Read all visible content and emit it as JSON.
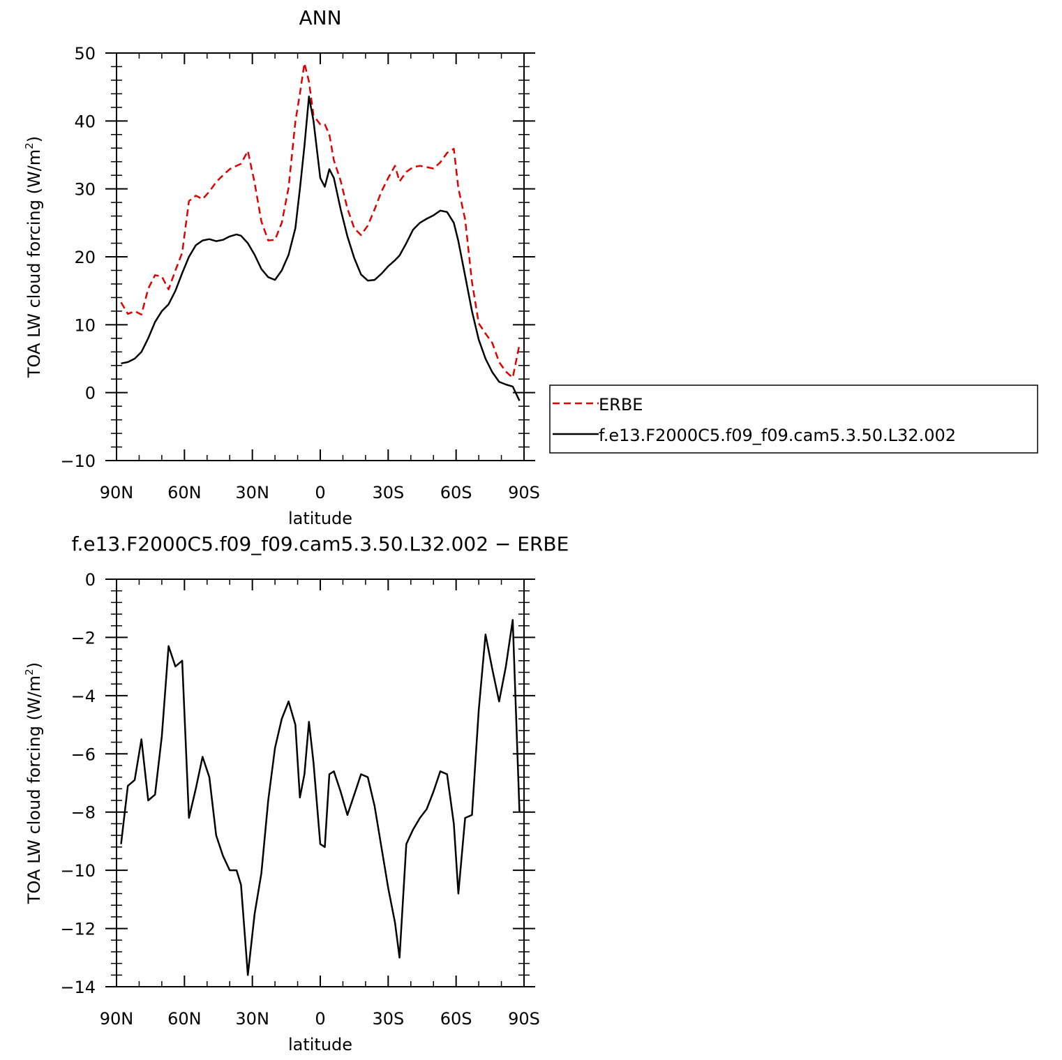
{
  "chart_data": [
    {
      "type": "line",
      "title": "ANN",
      "xlabel": "latitude",
      "ylabel_main": "TOA LW cloud forcing (W/m",
      "ylabel_sup": "2",
      "ylabel_close": ")",
      "xlim": [
        90,
        -90
      ],
      "ylim": [
        -10,
        50
      ],
      "x_ticks": [
        {
          "value": 90,
          "label": "90N"
        },
        {
          "value": 60,
          "label": "60N"
        },
        {
          "value": 30,
          "label": "30N"
        },
        {
          "value": 0,
          "label": "0"
        },
        {
          "value": -30,
          "label": "30S"
        },
        {
          "value": -60,
          "label": "60S"
        },
        {
          "value": -90,
          "label": "90S"
        }
      ],
      "y_ticks": [
        {
          "value": 50,
          "label": "50"
        },
        {
          "value": 40,
          "label": "40"
        },
        {
          "value": 30,
          "label": "30"
        },
        {
          "value": 20,
          "label": "20"
        },
        {
          "value": 10,
          "label": "10"
        },
        {
          "value": 0,
          "label": "0"
        },
        {
          "value": -10,
          "label": "−10"
        }
      ],
      "legend": {
        "placement": "right",
        "entries": [
          "ERBE",
          "f.e13.F2000C5.f09_f09.cam5.3.50.L32.002"
        ]
      },
      "series": [
        {
          "name": "ERBE",
          "color": "#e00000",
          "dash": true,
          "x": [
            88,
            85,
            82,
            79,
            76,
            73,
            70,
            67,
            64,
            61,
            58,
            55,
            52,
            49,
            46,
            43,
            40,
            37,
            35,
            32,
            29,
            26,
            23,
            20,
            17,
            14,
            11,
            9,
            7,
            5,
            3,
            0,
            -2,
            -4,
            -6,
            -9,
            -12,
            -15,
            -18,
            -21,
            -24,
            -27,
            -30,
            -33,
            -35,
            -38,
            -41,
            -44,
            -47,
            -50,
            -53,
            -56,
            -59,
            -61,
            -64,
            -67,
            -70,
            -73,
            -76,
            -79,
            -82,
            -85,
            -88
          ],
          "y": [
            13.3,
            11.6,
            12.0,
            11.5,
            15.3,
            17.3,
            17.1,
            15.2,
            18.0,
            20.6,
            28.2,
            29.0,
            28.5,
            29.6,
            31.0,
            32.0,
            32.9,
            33.4,
            33.7,
            35.6,
            30.9,
            25.2,
            22.4,
            22.5,
            25.0,
            30.2,
            39.9,
            44.0,
            48.5,
            45.8,
            40.8,
            39.5,
            39.5,
            38.0,
            34.2,
            31.2,
            27.1,
            24.2,
            23.2,
            24.6,
            27.0,
            29.6,
            31.6,
            33.4,
            31.1,
            32.5,
            33.2,
            33.4,
            33.2,
            33.0,
            33.9,
            35.3,
            35.9,
            30.1,
            25.5,
            16.3,
            10.2,
            8.7,
            7.3,
            4.5,
            3.1,
            2.2,
            7.1
          ]
        },
        {
          "name": "f.e13.F2000C5.f09_f09.cam5.3.50.L32.002",
          "color": "#000000",
          "dash": false,
          "x": [
            88,
            85,
            82,
            79,
            76,
            73,
            70,
            67,
            64,
            61,
            58,
            55,
            52,
            49,
            46,
            43,
            40,
            37,
            35,
            32,
            29,
            26,
            23,
            20,
            17,
            14,
            11,
            9,
            7,
            5,
            3,
            0,
            -2,
            -4,
            -6,
            -9,
            -12,
            -15,
            -18,
            -21,
            -24,
            -27,
            -30,
            -33,
            -35,
            -38,
            -41,
            -44,
            -47,
            -50,
            -53,
            -56,
            -59,
            -61,
            -64,
            -67,
            -70,
            -73,
            -76,
            -79,
            -82,
            -85,
            -88
          ],
          "y": [
            4.3,
            4.5,
            5.0,
            6.0,
            8.0,
            10.4,
            12.0,
            13.0,
            15.0,
            17.6,
            20.0,
            21.7,
            22.4,
            22.6,
            22.3,
            22.5,
            23.0,
            23.3,
            23.1,
            22.0,
            20.3,
            18.2,
            17.0,
            16.6,
            18.0,
            20.3,
            24.2,
            30.0,
            36.3,
            43.6,
            40.0,
            31.6,
            30.3,
            32.9,
            31.6,
            27.0,
            23.0,
            19.8,
            17.4,
            16.5,
            16.6,
            17.5,
            18.6,
            19.5,
            20.2,
            22.0,
            24.0,
            25.0,
            25.6,
            26.1,
            26.8,
            26.6,
            25.0,
            22.3,
            17.2,
            12.0,
            7.8,
            5.0,
            3.0,
            1.6,
            1.2,
            0.9,
            -1.2
          ]
        }
      ]
    },
    {
      "type": "line",
      "title": "f.e13.F2000C5.f09_f09.cam5.3.50.L32.002 − ERBE",
      "xlabel": "latitude",
      "ylabel_main": "TOA LW cloud forcing (W/m",
      "ylabel_sup": "2",
      "ylabel_close": ")",
      "xlim": [
        90,
        -90
      ],
      "ylim": [
        -14,
        0
      ],
      "x_ticks": [
        {
          "value": 90,
          "label": "90N"
        },
        {
          "value": 60,
          "label": "60N"
        },
        {
          "value": 30,
          "label": "30N"
        },
        {
          "value": 0,
          "label": "0"
        },
        {
          "value": -30,
          "label": "30S"
        },
        {
          "value": -60,
          "label": "60S"
        },
        {
          "value": -90,
          "label": "90S"
        }
      ],
      "y_ticks": [
        {
          "value": 0,
          "label": "0"
        },
        {
          "value": -2,
          "label": "−2"
        },
        {
          "value": -4,
          "label": "−4"
        },
        {
          "value": -6,
          "label": "−6"
        },
        {
          "value": -8,
          "label": "−8"
        },
        {
          "value": -10,
          "label": "−10"
        },
        {
          "value": -12,
          "label": "−12"
        },
        {
          "value": -14,
          "label": "−14"
        }
      ],
      "series": [
        {
          "color": "#000000",
          "dash": false,
          "x": [
            88,
            85,
            82,
            79,
            76,
            73,
            70,
            67,
            64,
            61,
            58,
            55,
            52,
            49,
            46,
            43,
            40,
            37,
            35,
            32,
            29,
            26,
            23,
            20,
            17,
            14,
            11,
            9,
            7,
            5,
            3,
            0,
            -2,
            -4,
            -6,
            -9,
            -12,
            -15,
            -18,
            -21,
            -24,
            -27,
            -30,
            -33,
            -35,
            -38,
            -41,
            -44,
            -47,
            -50,
            -53,
            -56,
            -59,
            -61,
            -64,
            -67,
            -70,
            -73,
            -76,
            -79,
            -82,
            -85,
            -88
          ],
          "y": [
            -9.1,
            -7.1,
            -6.9,
            -5.5,
            -7.6,
            -7.4,
            -5.4,
            -2.3,
            -3.0,
            -2.8,
            -8.2,
            -7.2,
            -6.1,
            -6.8,
            -8.8,
            -9.5,
            -10.0,
            -10.0,
            -10.5,
            -13.6,
            -11.5,
            -10.1,
            -7.6,
            -5.8,
            -4.8,
            -4.2,
            -5.0,
            -7.5,
            -6.7,
            -4.9,
            -6.3,
            -9.1,
            -9.2,
            -6.7,
            -6.6,
            -7.3,
            -8.1,
            -7.4,
            -6.7,
            -6.8,
            -7.8,
            -9.2,
            -10.6,
            -11.8,
            -13.0,
            -9.1,
            -8.6,
            -8.2,
            -7.9,
            -7.3,
            -6.6,
            -6.7,
            -8.4,
            -10.8,
            -8.2,
            -8.1,
            -4.5,
            -1.9,
            -3.1,
            -4.2,
            -3.0,
            -1.4,
            -8.0
          ]
        }
      ]
    }
  ]
}
